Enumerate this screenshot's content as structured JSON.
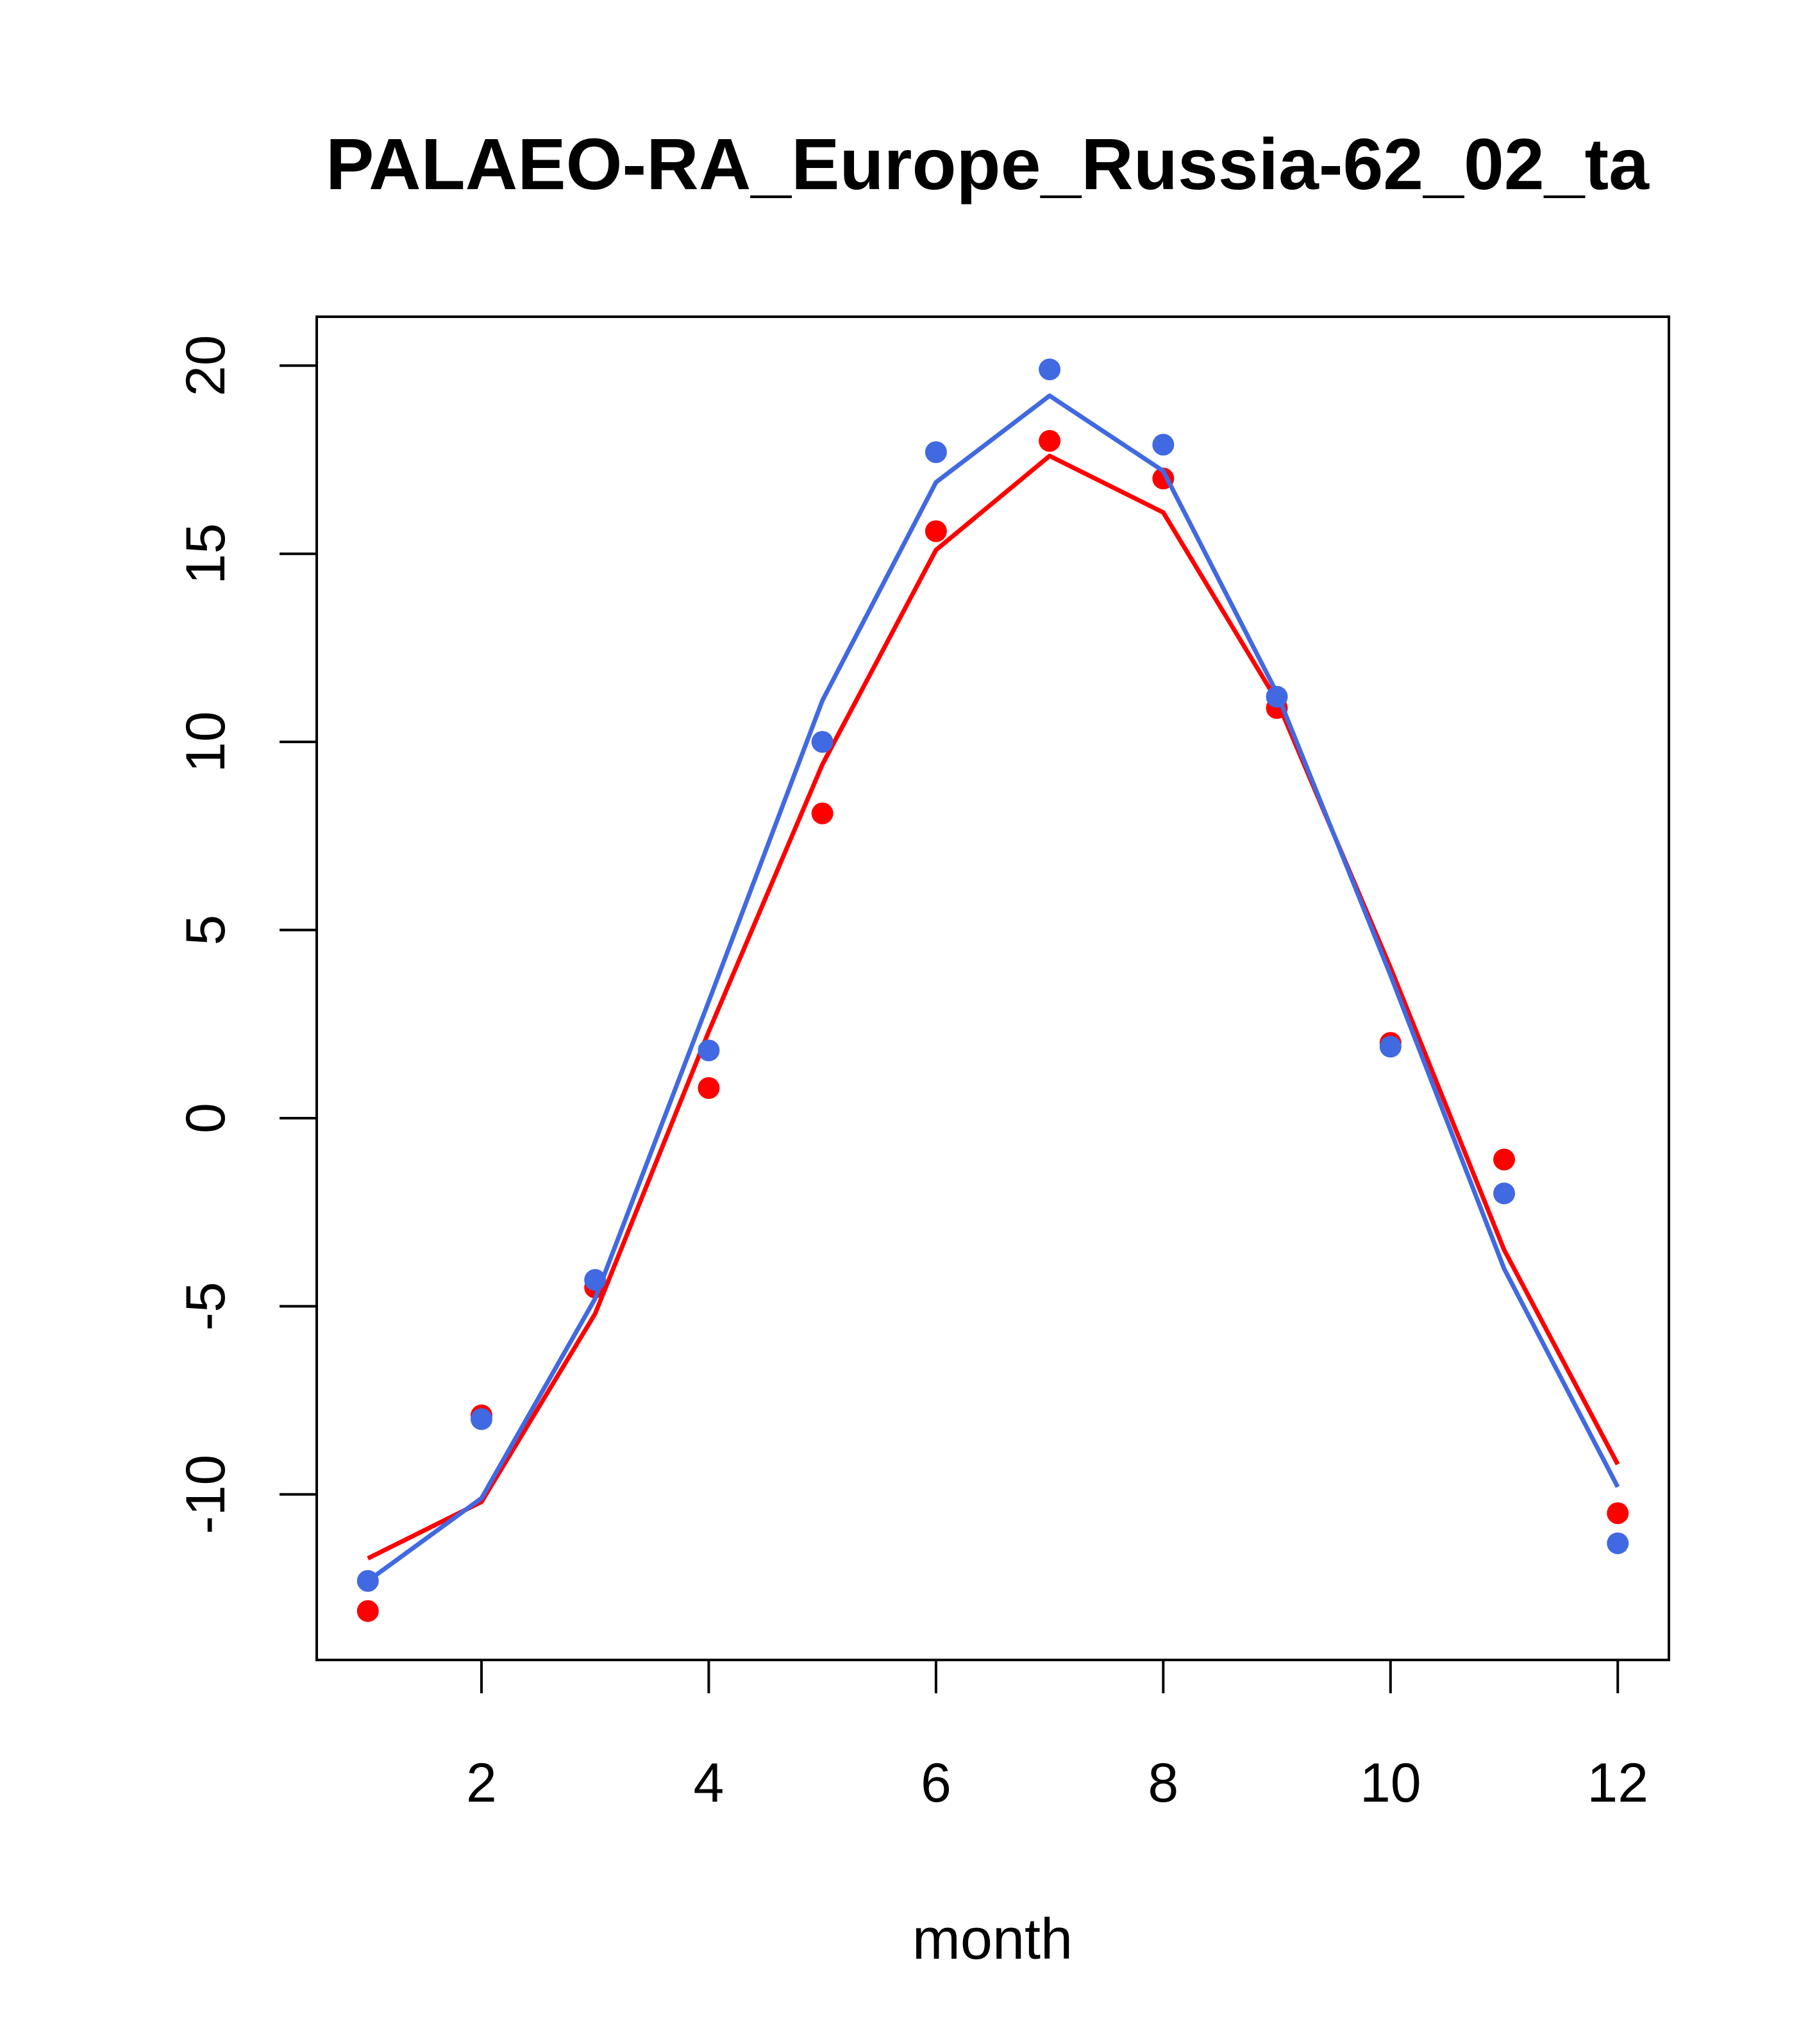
{
  "chart_data": {
    "type": "line",
    "title": "PALAEO-RA_Europe_Russia-62_02_ta",
    "xlabel": "month",
    "ylabel": "",
    "xlim": [
      0.55,
      12.45
    ],
    "ylim": [
      -14.4,
      21.3
    ],
    "x_ticks": [
      2,
      4,
      6,
      8,
      10,
      12
    ],
    "y_ticks": [
      -10,
      -5,
      0,
      5,
      10,
      15,
      20
    ],
    "grid": false,
    "legend": "none",
    "x": [
      1,
      2,
      3,
      4,
      5,
      6,
      7,
      8,
      9,
      10,
      11,
      12
    ],
    "series": [
      {
        "color": "#ff0000",
        "points": [
          -13.1,
          -7.9,
          -4.5,
          0.8,
          8.1,
          15.6,
          18.0,
          17.0,
          10.9,
          2.0,
          -1.1,
          -10.5
        ],
        "line": [
          -11.7,
          -10.2,
          -5.2,
          2.3,
          9.4,
          15.1,
          17.6,
          16.1,
          11.1,
          4.0,
          -3.5,
          -9.2
        ]
      },
      {
        "color": "#4169e1",
        "points": [
          -12.3,
          -8.0,
          -4.3,
          1.8,
          10.0,
          17.7,
          19.9,
          17.9,
          11.2,
          1.9,
          -2.0,
          -11.3
        ],
        "line": [
          -12.3,
          -10.1,
          -4.8,
          3.1,
          11.1,
          16.9,
          19.2,
          17.2,
          11.3,
          3.8,
          -4.0,
          -9.8
        ]
      }
    ]
  }
}
